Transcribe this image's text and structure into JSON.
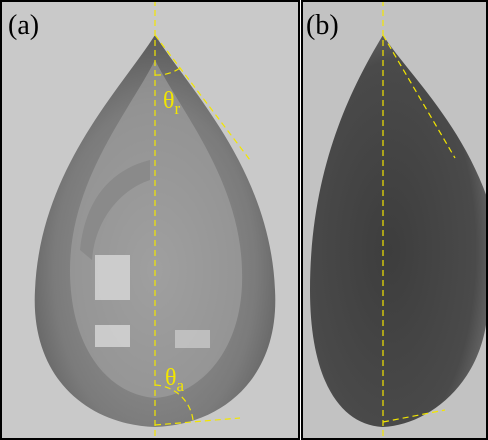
{
  "panels": [
    {
      "label": "(a)",
      "angle": {
        "symbol": "θ",
        "subscript": "r"
      },
      "angle2": {
        "symbol": "θ",
        "subscript": "a"
      }
    },
    {
      "label": "(b)"
    }
  ]
}
